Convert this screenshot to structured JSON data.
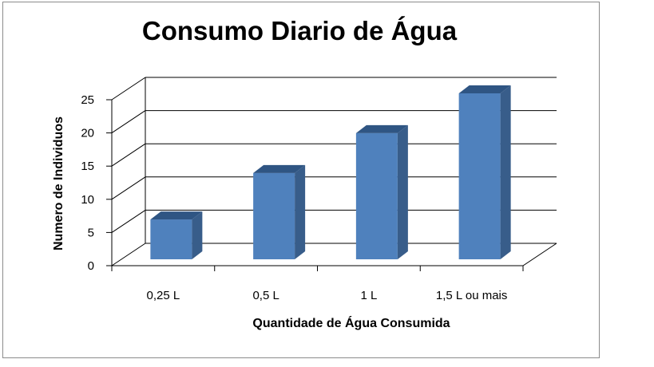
{
  "chart_data": {
    "type": "bar",
    "title": "Consumo Diario de Água",
    "xlabel": "Quantidade de Água Consumida",
    "ylabel": "Numero de Individuos",
    "categories": [
      "0,25 L",
      "0,5 L",
      "1 L",
      "1,5 L ou mais"
    ],
    "values": [
      6,
      13,
      19,
      25
    ],
    "ylim": [
      0,
      25
    ],
    "yticks": [
      "0",
      "5",
      "10",
      "15",
      "20",
      "25"
    ],
    "style": "3d-column",
    "grid": true,
    "legend": "none",
    "colors": {
      "bar_front": "#4f81bd",
      "bar_side": "#385d8a",
      "bar_top": "#2f5583",
      "grid": "#000000"
    }
  }
}
